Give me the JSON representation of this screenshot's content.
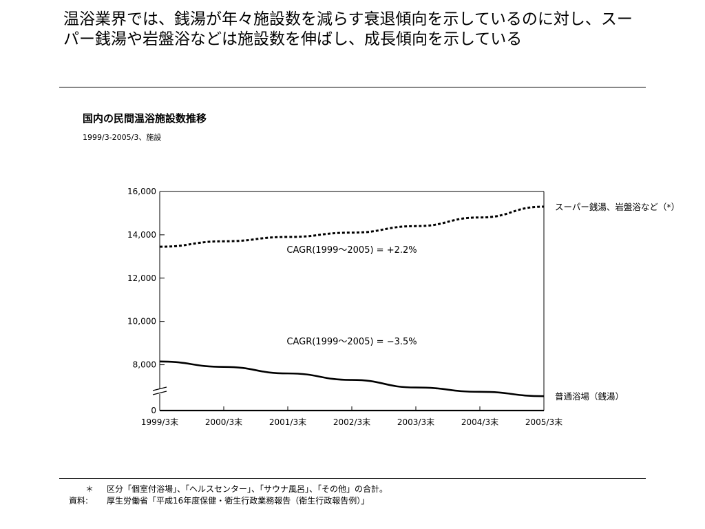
{
  "headline": "温浴業界では、銭湯が年々施設数を減らす衰退傾向を示しているのに対し、スーパー銭湯や岩盤浴などは施設数を伸ばし、成長傾向を示している",
  "chart_data": {
    "type": "line",
    "title": "国内の民間温浴施設数推移",
    "subtitle": "1999/3-2005/3、施設",
    "categories": [
      "1999/3末",
      "2000/3末",
      "2001/3末",
      "2002/3末",
      "2003/3末",
      "2004/3末",
      "2005/3末"
    ],
    "y_ticks": [
      "16,000",
      "14,000",
      "12,000",
      "10,000",
      "8,000",
      "0"
    ],
    "axis_break": true,
    "grid": false,
    "series": [
      {
        "name": "スーパー銭湯、岩盤浴など（*）",
        "style": "dashed",
        "values": [
          13450,
          13700,
          13900,
          14100,
          14400,
          14800,
          15300
        ],
        "cagr_label": "CAGR(1999〜2005) = +2.2%"
      },
      {
        "name": "普通浴場（銭湯）",
        "style": "solid",
        "values": [
          8150,
          7900,
          7600,
          7300,
          6950,
          6750,
          6550
        ],
        "cagr_label": "CAGR(1999〜2005) = −3.5%"
      }
    ]
  },
  "footnotes": {
    "asterisk_marker": "＊",
    "asterisk_text": "区分「個室付浴場」、「ヘルスセンター」、「サウナ風呂」、「その他」の合計。",
    "source_label": "資料:",
    "source_text": "厚生労働省「平成16年度保健・衛生行政業務報告（衛生行政報告例）」"
  },
  "colors": {
    "ink": "#000000",
    "background": "#ffffff"
  }
}
